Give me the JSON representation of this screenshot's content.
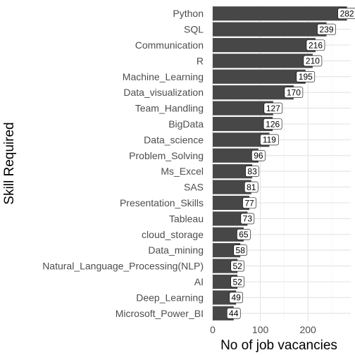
{
  "chart_data": {
    "type": "bar",
    "orientation": "horizontal",
    "title": "",
    "xlabel": "No of job vacancies",
    "ylabel": "Skill Required",
    "xlim": [
      0,
      290
    ],
    "xticks": [
      0,
      100,
      200
    ],
    "grid": true,
    "legend": "none",
    "categories": [
      "Python",
      "SQL",
      "Communication",
      "R",
      "Machine_Learning",
      "Data_visualization",
      "Team_Handling",
      "BigData",
      "Data_science",
      "Problem_Solving",
      "Ms_Excel",
      "SAS",
      "Presentation_Skills",
      "Tableau",
      "cloud_storage",
      "Data_mining",
      "Natural_Language_Processing(NLP)",
      "AI",
      "Deep_Learning",
      "Microsoft_Power_BI"
    ],
    "values": [
      282,
      239,
      216,
      210,
      195,
      170,
      127,
      126,
      119,
      96,
      83,
      81,
      77,
      73,
      65,
      58,
      52,
      52,
      49,
      44
    ],
    "colors": {
      "bar": "#474747",
      "grid_major": "#e3e3e3",
      "grid_minor": "#f1f1f1",
      "label_box_fill": "#ffffff",
      "label_box_stroke": "#000000",
      "tick_text": "#4d4d4d",
      "background": "#ffffff"
    }
  }
}
